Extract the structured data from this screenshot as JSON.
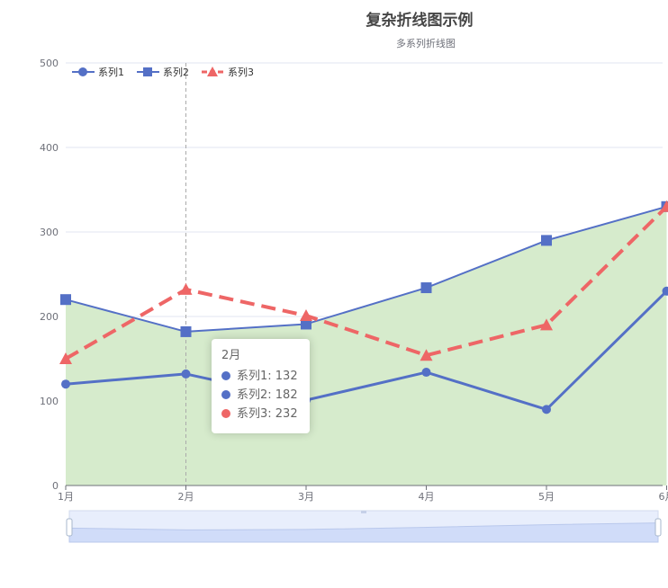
{
  "chart_data": {
    "type": "line",
    "title": "复杂折线图示例",
    "subtitle": "多系列折线图",
    "categories": [
      "1月",
      "2月",
      "3月",
      "4月",
      "5月",
      "6月"
    ],
    "ylim": [
      0,
      500
    ],
    "yticks": [
      0,
      100,
      200,
      300,
      400,
      500
    ],
    "grid": true,
    "legend_position": "top-left",
    "series": [
      {
        "name": "系列1",
        "values": [
          120,
          132,
          101,
          134,
          90,
          230
        ],
        "color": "#5470c6",
        "marker": "circle",
        "line_style": "solid"
      },
      {
        "name": "系列2",
        "values": [
          220,
          182,
          191,
          234,
          290,
          330
        ],
        "color": "#5470c6",
        "marker": "square",
        "line_style": "solid",
        "area": true,
        "area_color": "#d6ebcc"
      },
      {
        "name": "系列3",
        "values": [
          150,
          232,
          201,
          154,
          190,
          330
        ],
        "color": "#ee6666",
        "marker": "triangle",
        "line_style": "dashed"
      }
    ],
    "tooltip": {
      "category": "2月",
      "rows": [
        {
          "label": "系列1: 132",
          "color": "#5470c6"
        },
        {
          "label": "系列2: 182",
          "color": "#5470c6"
        },
        {
          "label": "系列3: 232",
          "color": "#ee6666"
        }
      ]
    },
    "data_zoom": {
      "start_percent": 0,
      "end_percent": 100
    }
  }
}
